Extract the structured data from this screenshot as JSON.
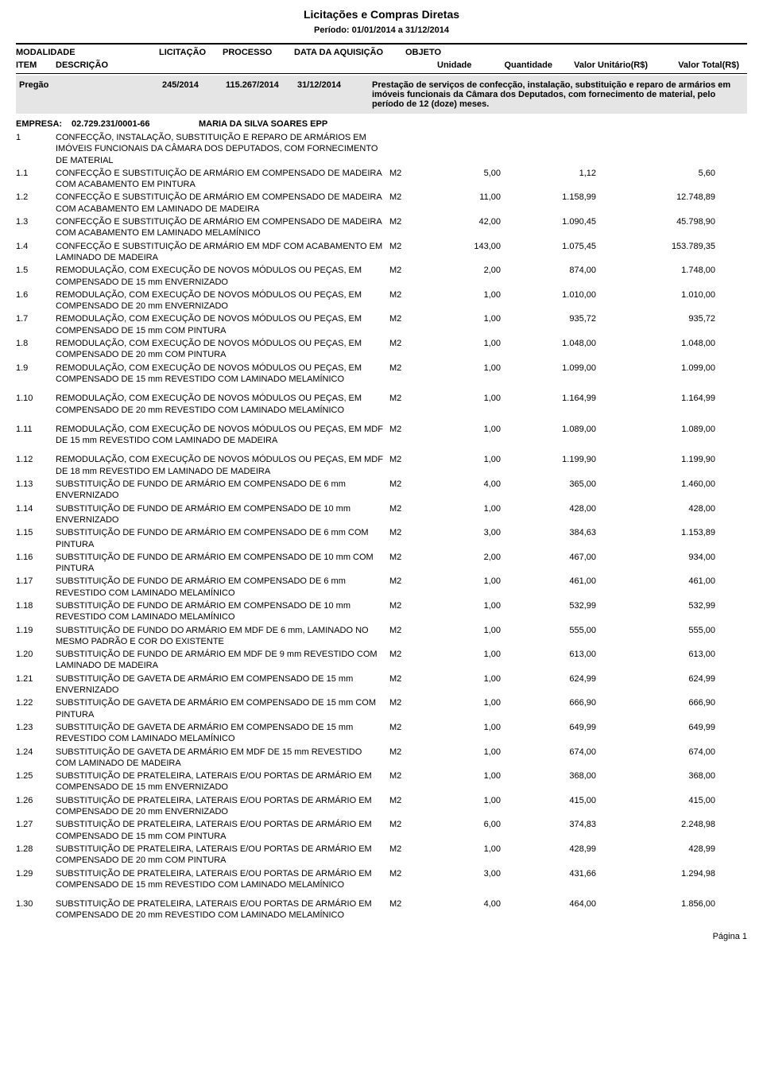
{
  "report": {
    "title": "Licitações e Compras Diretas",
    "period": "Período: 01/01/2014  a 31/12/2014",
    "page_footer": "Página 1"
  },
  "headers": {
    "modalidade": "MODALIDADE",
    "licitacao": "LICITAÇÃO",
    "processo": "PROCESSO",
    "data": "DATA DA AQUISIÇÃO",
    "objeto": "OBJETO",
    "item": "ITEM",
    "descricao": "DESCRIÇÃO",
    "unidade": "Unidade",
    "quantidade": "Quantidade",
    "valor_unit": "Valor Unitário(R$)",
    "valor_total": "Valor Total(R$)"
  },
  "pregao": {
    "modalidade": "Pregão",
    "licitacao": "245/2014",
    "processo": "115.267/2014",
    "data": "31/12/2014",
    "objeto": "Prestação de serviços de confecção, instalação, substituição e reparo de armários em imóveis funcionais da Câmara dos Deputados, com fornecimento de material, pelo período de 12 (doze) meses."
  },
  "empresa": {
    "label": "EMPRESA:",
    "cnpj": "02.729.231/0001-66",
    "name": "MARIA DA SILVA SOARES EPP"
  },
  "items": [
    {
      "num": "1",
      "desc": "CONFECÇÃO, INSTALAÇÃO, SUBSTITUIÇÃO E REPARO DE ARMÁRIOS EM IMÓVEIS FUNCIONAIS DA CÂMARA DOS DEPUTADOS, COM FORNECIMENTO DE MATERIAL",
      "un": "",
      "qtd": "",
      "unit": "",
      "total": "",
      "spaced": false
    },
    {
      "num": "1.1",
      "desc": "CONFECÇÃO E SUBSTITUIÇÃO DE ARMÁRIO EM COMPENSADO DE MADEIRA COM ACABAMENTO EM PINTURA",
      "un": "M2",
      "qtd": "5,00",
      "unit": "1,12",
      "total": "5,60",
      "spaced": false
    },
    {
      "num": "1.2",
      "desc": "CONFECÇÃO E SUBSTITUIÇÃO DE ARMÁRIO EM COMPENSADO DE MADEIRA COM ACABAMENTO EM LAMINADO DE MADEIRA",
      "un": "M2",
      "qtd": "11,00",
      "unit": "1.158,99",
      "total": "12.748,89",
      "spaced": false
    },
    {
      "num": "1.3",
      "desc": "CONFECÇÃO E SUBSTITUIÇÃO DE ARMÁRIO EM COMPENSADO DE MADEIRA COM ACABAMENTO EM LAMINADO MELAMÍNICO",
      "un": "M2",
      "qtd": "42,00",
      "unit": "1.090,45",
      "total": "45.798,90",
      "spaced": false
    },
    {
      "num": "1.4",
      "desc": "CONFECÇÃO E SUBSTITUIÇÃO DE ARMÁRIO EM MDF COM ACABAMENTO EM LAMINADO DE MADEIRA",
      "un": "M2",
      "qtd": "143,00",
      "unit": "1.075,45",
      "total": "153.789,35",
      "spaced": false
    },
    {
      "num": "1.5",
      "desc": "REMODULAÇÃO, COM EXECUÇÃO DE NOVOS MÓDULOS OU PEÇAS, EM COMPENSADO DE 15 mm ENVERNIZADO",
      "un": "M2",
      "qtd": "2,00",
      "unit": "874,00",
      "total": "1.748,00",
      "spaced": false
    },
    {
      "num": "1.6",
      "desc": "REMODULAÇÃO, COM EXECUÇÃO DE NOVOS MÓDULOS OU PEÇAS, EM COMPENSADO DE 20 mm ENVERNIZADO",
      "un": "M2",
      "qtd": "1,00",
      "unit": "1.010,00",
      "total": "1.010,00",
      "spaced": false
    },
    {
      "num": "1.7",
      "desc": "REMODULAÇÃO, COM EXECUÇÃO DE NOVOS MÓDULOS OU PEÇAS, EM COMPENSADO DE 15 mm COM PINTURA",
      "un": "M2",
      "qtd": "1,00",
      "unit": "935,72",
      "total": "935,72",
      "spaced": false
    },
    {
      "num": "1.8",
      "desc": "REMODULAÇÃO, COM EXECUÇÃO DE NOVOS MÓDULOS OU PEÇAS, EM COMPENSADO DE 20 mm COM PINTURA",
      "un": "M2",
      "qtd": "1,00",
      "unit": "1.048,00",
      "total": "1.048,00",
      "spaced": false
    },
    {
      "num": "1.9",
      "desc": "REMODULAÇÃO, COM EXECUÇÃO DE NOVOS MÓDULOS OU PEÇAS, EM COMPENSADO DE 15 mm REVESTIDO COM LAMINADO MELAMÍNICO",
      "un": "M2",
      "qtd": "1,00",
      "unit": "1.099,00",
      "total": "1.099,00",
      "spaced": false
    },
    {
      "num": "1.10",
      "desc": "REMODULAÇÃO, COM EXECUÇÃO DE NOVOS MÓDULOS OU PEÇAS, EM COMPENSADO DE 20 mm REVESTIDO COM LAMINADO MELAMÍNICO",
      "un": "M2",
      "qtd": "1,00",
      "unit": "1.164,99",
      "total": "1.164,99",
      "spaced": true
    },
    {
      "num": "1.11",
      "desc": "REMODULAÇÃO, COM EXECUÇÃO DE NOVOS MÓDULOS OU PEÇAS, EM MDF DE 15 mm REVESTIDO COM LAMINADO DE MADEIRA",
      "un": "M2",
      "qtd": "1,00",
      "unit": "1.089,00",
      "total": "1.089,00",
      "spaced": true
    },
    {
      "num": "1.12",
      "desc": "REMODULAÇÃO, COM EXECUÇÃO DE NOVOS MÓDULOS OU PEÇAS, EM MDF DE 18 mm REVESTIDO EM LAMINADO DE MADEIRA",
      "un": "M2",
      "qtd": "1,00",
      "unit": "1.199,90",
      "total": "1.199,90",
      "spaced": true
    },
    {
      "num": "1.13",
      "desc": "SUBSTITUIÇÃO DE FUNDO DE ARMÁRIO EM COMPENSADO DE 6 mm ENVERNIZADO",
      "un": "M2",
      "qtd": "4,00",
      "unit": "365,00",
      "total": "1.460,00",
      "spaced": false
    },
    {
      "num": "1.14",
      "desc": "SUBSTITUIÇÃO DE FUNDO DE ARMÁRIO EM COMPENSADO DE 10 mm ENVERNIZADO",
      "un": "M2",
      "qtd": "1,00",
      "unit": "428,00",
      "total": "428,00",
      "spaced": false
    },
    {
      "num": "1.15",
      "desc": "SUBSTITUIÇÃO DE FUNDO DE ARMÁRIO EM COMPENSADO DE 6 mm COM PINTURA",
      "un": "M2",
      "qtd": "3,00",
      "unit": "384,63",
      "total": "1.153,89",
      "spaced": false
    },
    {
      "num": "1.16",
      "desc": "SUBSTITUIÇÃO DE FUNDO DE ARMÁRIO EM COMPENSADO DE 10 mm COM PINTURA",
      "un": "M2",
      "qtd": "2,00",
      "unit": "467,00",
      "total": "934,00",
      "spaced": false
    },
    {
      "num": "1.17",
      "desc": "SUBSTITUIÇÃO DE FUNDO DE ARMÁRIO EM COMPENSADO DE 6 mm REVESTIDO COM LAMINADO MELAMÍNICO",
      "un": "M2",
      "qtd": "1,00",
      "unit": "461,00",
      "total": "461,00",
      "spaced": false
    },
    {
      "num": "1.18",
      "desc": "SUBSTITUIÇÃO DE FUNDO DE ARMÁRIO EM COMPENSADO DE 10 mm REVESTIDO COM LAMINADO MELAMÍNICO",
      "un": "M2",
      "qtd": "1,00",
      "unit": "532,99",
      "total": "532,99",
      "spaced": false
    },
    {
      "num": "1.19",
      "desc": "SUBSTITUIÇÃO DE FUNDO DO ARMÁRIO EM MDF DE 6 mm, LAMINADO NO MESMO PADRÃO E COR DO EXISTENTE",
      "un": "M2",
      "qtd": "1,00",
      "unit": "555,00",
      "total": "555,00",
      "spaced": false
    },
    {
      "num": "1.20",
      "desc": "SUBSTITUIÇÃO DE FUNDO DE ARMÁRIO EM MDF DE 9 mm REVESTIDO COM LAMINADO DE MADEIRA",
      "un": "M2",
      "qtd": "1,00",
      "unit": "613,00",
      "total": "613,00",
      "spaced": false
    },
    {
      "num": "1.21",
      "desc": "SUBSTITUIÇÃO DE GAVETA DE ARMÁRIO EM COMPENSADO DE 15 mm ENVERNIZADO",
      "un": "M2",
      "qtd": "1,00",
      "unit": "624,99",
      "total": "624,99",
      "spaced": false
    },
    {
      "num": "1.22",
      "desc": "SUBSTITUIÇÃO DE GAVETA DE ARMÁRIO EM COMPENSADO DE 15 mm COM PINTURA",
      "un": "M2",
      "qtd": "1,00",
      "unit": "666,90",
      "total": "666,90",
      "spaced": false
    },
    {
      "num": "1.23",
      "desc": "SUBSTITUIÇÃO DE GAVETA DE ARMÁRIO EM COMPENSADO DE 15 mm REVESTIDO COM LAMINADO MELAMÍNICO",
      "un": "M2",
      "qtd": "1,00",
      "unit": "649,99",
      "total": "649,99",
      "spaced": false
    },
    {
      "num": "1.24",
      "desc": "SUBSTITUIÇÃO DE GAVETA DE ARMÁRIO EM MDF DE 15 mm REVESTIDO COM LAMINADO DE MADEIRA",
      "un": "M2",
      "qtd": "1,00",
      "unit": "674,00",
      "total": "674,00",
      "spaced": false
    },
    {
      "num": "1.25",
      "desc": "SUBSTITUIÇÃO DE PRATELEIRA, LATERAIS E/OU PORTAS DE ARMÁRIO EM COMPENSADO DE 15 mm ENVERNIZADO",
      "un": "M2",
      "qtd": "1,00",
      "unit": "368,00",
      "total": "368,00",
      "spaced": false
    },
    {
      "num": "1.26",
      "desc": "SUBSTITUIÇÃO DE PRATELEIRA, LATERAIS E/OU PORTAS DE ARMÁRIO EM COMPENSADO DE 20 mm ENVERNIZADO",
      "un": "M2",
      "qtd": "1,00",
      "unit": "415,00",
      "total": "415,00",
      "spaced": false
    },
    {
      "num": "1.27",
      "desc": "SUBSTITUIÇÃO DE PRATELEIRA, LATERAIS E/OU PORTAS DE ARMÁRIO EM COMPENSADO DE 15 mm COM PINTURA",
      "un": "M2",
      "qtd": "6,00",
      "unit": "374,83",
      "total": "2.248,98",
      "spaced": false
    },
    {
      "num": "1.28",
      "desc": "SUBSTITUIÇÃO DE PRATELEIRA, LATERAIS E/OU PORTAS DE ARMÁRIO EM COMPENSADO DE 20 mm COM PINTURA",
      "un": "M2",
      "qtd": "1,00",
      "unit": "428,99",
      "total": "428,99",
      "spaced": false
    },
    {
      "num": "1.29",
      "desc": "SUBSTITUIÇÃO DE PRATELEIRA, LATERAIS E/OU PORTAS DE ARMÁRIO EM COMPENSADO DE 15 mm REVESTIDO COM LAMINADO MELAMÍNICO",
      "un": "M2",
      "qtd": "3,00",
      "unit": "431,66",
      "total": "1.294,98",
      "spaced": false
    },
    {
      "num": "1.30",
      "desc": "SUBSTITUIÇÃO DE PRATELEIRA, LATERAIS E/OU PORTAS DE ARMÁRIO EM COMPENSADO DE 20 mm REVESTIDO COM LAMINADO MELAMÍNICO",
      "un": "M2",
      "qtd": "4,00",
      "unit": "464,00",
      "total": "1.856,00",
      "spaced": true
    }
  ],
  "colors": {
    "background": "#ffffff",
    "text": "#000000",
    "block_bg": "#e5e5e5"
  }
}
